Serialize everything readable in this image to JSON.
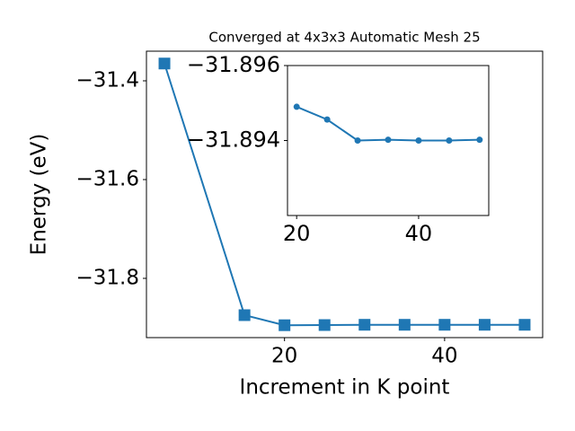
{
  "chart_data": [
    {
      "type": "line",
      "title": "Converged at 4x3x3 Automatic Mesh 25",
      "xlabel": "Increment in K point",
      "ylabel": "Energy (eV)",
      "x": [
        5,
        15,
        20,
        25,
        30,
        35,
        40,
        45,
        50
      ],
      "values": [
        -31.365,
        -31.8745,
        -31.8949,
        -31.89456,
        -31.894,
        -31.89402,
        -31.894,
        -31.894,
        -31.89402
      ],
      "color": "#1f77b4",
      "marker": "square",
      "xlim": [
        2.75,
        52.25
      ],
      "ylim": [
        -31.92,
        -31.34
      ],
      "xticks": [
        20,
        40
      ],
      "yticks": [
        {
          "value": -31.4,
          "label": "−31.4"
        },
        {
          "value": -31.6,
          "label": "−31.6"
        },
        {
          "value": -31.8,
          "label": "−31.8"
        }
      ]
    },
    {
      "type": "line",
      "x": [
        20,
        25,
        30,
        35,
        40,
        45,
        50
      ],
      "values": [
        -31.8949,
        -31.89456,
        -31.894,
        -31.89402,
        -31.894,
        -31.894,
        -31.89402
      ],
      "color": "#1f77b4",
      "marker": "circle",
      "xlim": [
        18.5,
        51.5
      ],
      "ylim": [
        -31.892,
        -31.896
      ],
      "xticks": [
        20,
        40
      ],
      "yticks": [
        {
          "value": -31.896,
          "label": "−31.896"
        },
        {
          "value": -31.894,
          "label": "−31.894"
        }
      ]
    }
  ]
}
